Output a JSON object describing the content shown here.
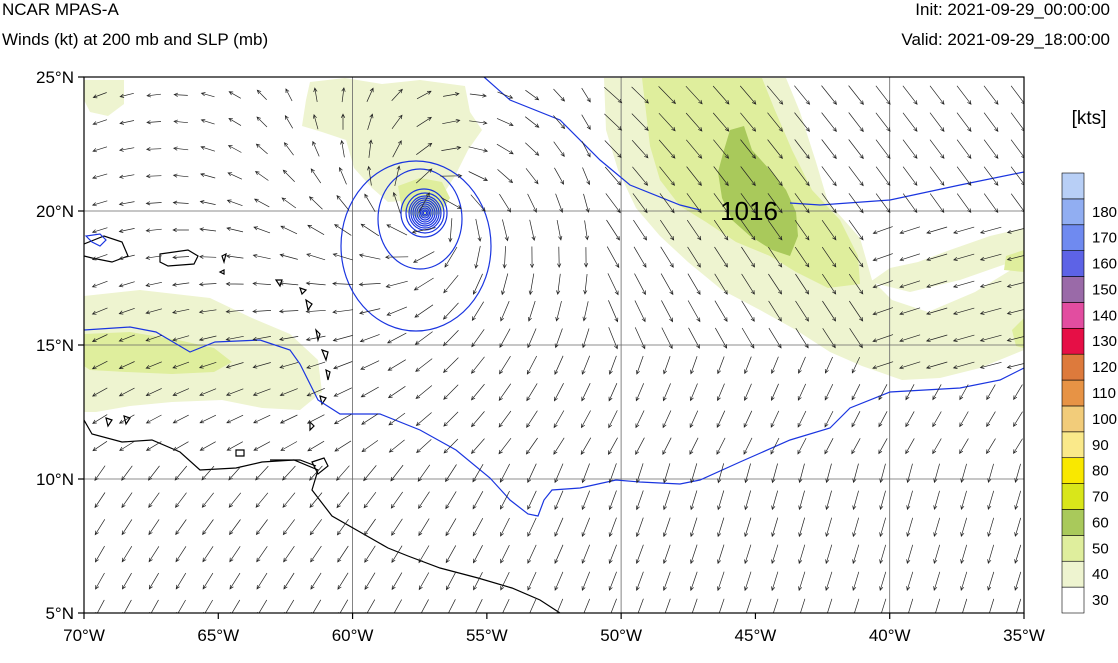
{
  "header": {
    "title": "NCAR MPAS-A",
    "subtitle": "Winds (kt) at 200 mb and SLP (mb)",
    "init": "Init: 2021-09-29_00:00:00",
    "valid": "Valid: 2021-09-29_18:00:00"
  },
  "map": {
    "lon_range": [
      -70,
      -35
    ],
    "lat_range": [
      5,
      25
    ],
    "lon_ticks": [
      {
        "v": -70,
        "label": "70°W"
      },
      {
        "v": -65,
        "label": "65°W"
      },
      {
        "v": -60,
        "label": "60°W"
      },
      {
        "v": -55,
        "label": "55°W"
      },
      {
        "v": -50,
        "label": "50°W"
      },
      {
        "v": -45,
        "label": "45°W"
      },
      {
        "v": -40,
        "label": "40°W"
      },
      {
        "v": -35,
        "label": "35°W"
      }
    ],
    "lat_ticks": [
      {
        "v": 25,
        "label": "25°N"
      },
      {
        "v": 20,
        "label": "20°N"
      },
      {
        "v": 15,
        "label": "15°N"
      },
      {
        "v": 10,
        "label": "10°N"
      },
      {
        "v": 5,
        "label": "5°N"
      }
    ],
    "contour_label": "1016",
    "isobar_color": "#1a35e0",
    "coast_color": "#000000",
    "storm_center": {
      "lon": -57.1,
      "lat": 19.85
    }
  },
  "colorbar": {
    "unit": "[kts]",
    "levels": [
      {
        "label": "30",
        "color": "#ffffff"
      },
      {
        "label": "40",
        "color": "#eef4d0"
      },
      {
        "label": "50",
        "color": "#dfee9d"
      },
      {
        "label": "60",
        "color": "#a9c95b"
      },
      {
        "label": "70",
        "color": "#d9e61a"
      },
      {
        "label": "80",
        "color": "#f9e800"
      },
      {
        "label": "90",
        "color": "#fae98a"
      },
      {
        "label": "100",
        "color": "#f2cc7a"
      },
      {
        "label": "110",
        "color": "#e79345"
      },
      {
        "label": "120",
        "color": "#dd7a3c"
      },
      {
        "label": "130",
        "color": "#e60f46"
      },
      {
        "label": "140",
        "color": "#e24da0"
      },
      {
        "label": "150",
        "color": "#9a6aa8"
      },
      {
        "label": "160",
        "color": "#5d63e6"
      },
      {
        "label": "170",
        "color": "#6f8af0"
      },
      {
        "label": "180",
        "color": "#91aef2"
      },
      {
        "label": "",
        "color": "#b8cff6"
      }
    ]
  }
}
